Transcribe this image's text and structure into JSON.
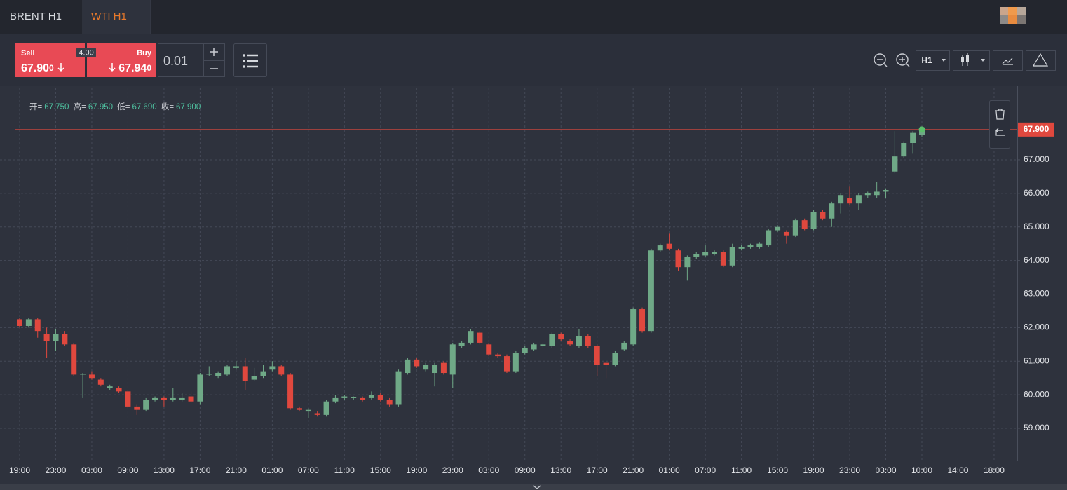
{
  "tabs": [
    "BRENT H1",
    "WTI H1"
  ],
  "sell": {
    "label": "Sell",
    "price_main": "67.90",
    "price_tail": "0"
  },
  "buy": {
    "label": "Buy",
    "price_main": "67.94",
    "price_tail": "0"
  },
  "spread": "4.00",
  "lot": "0.01",
  "timeframe": "H1",
  "ohlc_info": [
    {
      "label": "开=",
      "value": "67.750"
    },
    {
      "label": "高=",
      "value": "67.950"
    },
    {
      "label": "低=",
      "value": "67.690"
    },
    {
      "label": "收=",
      "value": "67.900"
    }
  ],
  "chart_data": {
    "type": "candlestick",
    "categories": [
      "19:00",
      null,
      null,
      null,
      "23:00",
      null,
      null,
      null,
      "03:00",
      null,
      null,
      null,
      "09:00",
      null,
      null,
      null,
      "13:00",
      null,
      null,
      null,
      "17:00",
      null,
      null,
      null,
      "21:00",
      null,
      null,
      null,
      "01:00",
      null,
      null,
      null,
      "07:00",
      null,
      null,
      null,
      "11:00",
      null,
      null,
      null,
      "15:00",
      null,
      null,
      null,
      "19:00",
      null,
      null,
      null,
      "23:00",
      null,
      null,
      null,
      "03:00",
      null,
      null,
      null,
      "09:00",
      null,
      null,
      null,
      "13:00",
      null,
      null,
      null,
      "17:00",
      null,
      null,
      null,
      "21:00",
      null,
      null,
      null,
      "01:00",
      null,
      null,
      null,
      "07:00",
      null,
      null,
      null,
      "11:00",
      null,
      null,
      null,
      "15:00",
      null,
      null,
      null,
      "19:00",
      null,
      null,
      null,
      "23:00",
      null,
      null,
      null,
      "03:00",
      null,
      null,
      null,
      "10:00",
      null,
      null,
      null,
      "14:00",
      null,
      null,
      null,
      "18:00",
      null,
      null
    ],
    "open": [
      62.25,
      62.05,
      62.25,
      61.8,
      61.6,
      61.8,
      61.5,
      60.6,
      60.6,
      60.45,
      60.2,
      60.2,
      60.1,
      59.65,
      59.55,
      59.85,
      59.9,
      59.85,
      59.85,
      59.95,
      59.8,
      60.6,
      60.55,
      60.6,
      60.8,
      60.85,
      60.45,
      60.55,
      60.75,
      60.85,
      60.6,
      59.6,
      59.5,
      59.45,
      59.4,
      59.8,
      59.9,
      59.9,
      59.9,
      59.9,
      60.0,
      59.85,
      59.7,
      60.65,
      61.05,
      60.75,
      60.65,
      60.95,
      60.6,
      61.45,
      61.55,
      61.85,
      61.5,
      61.2,
      61.15,
      60.7,
      61.25,
      61.35,
      61.45,
      61.45,
      61.8,
      61.6,
      61.45,
      61.75,
      61.45,
      60.95,
      60.9,
      61.35,
      61.5,
      62.55,
      61.9,
      64.3,
      64.5,
      64.3,
      63.8,
      64.1,
      64.15,
      64.2,
      64.25,
      63.85,
      64.35,
      64.4,
      64.4,
      64.45,
      64.9,
      64.85,
      64.75,
      65.2,
      64.95,
      65.45,
      65.25,
      65.7,
      65.85,
      65.7,
      65.95,
      65.95,
      66.05,
      66.65,
      67.1,
      67.5,
      67.75,
      null,
      null,
      null,
      null,
      null,
      null,
      null,
      null,
      null,
      null
    ],
    "high": [
      62.3,
      62.3,
      62.3,
      62.0,
      61.95,
      61.9,
      61.55,
      60.65,
      60.7,
      60.5,
      60.3,
      60.25,
      60.15,
      59.7,
      59.9,
      59.95,
      59.95,
      60.2,
      60.05,
      60.1,
      60.65,
      60.85,
      60.7,
      60.9,
      61.0,
      61.1,
      60.8,
      60.9,
      61.0,
      60.9,
      60.65,
      59.65,
      59.6,
      59.5,
      59.85,
      60.0,
      60.0,
      59.95,
      59.95,
      60.1,
      60.05,
      59.9,
      60.75,
      61.1,
      61.1,
      60.95,
      60.95,
      61.0,
      61.55,
      61.6,
      61.95,
      61.9,
      61.55,
      61.25,
      61.2,
      61.3,
      61.45,
      61.55,
      61.55,
      61.85,
      61.85,
      61.65,
      61.95,
      61.8,
      61.5,
      61.0,
      61.3,
      61.6,
      62.6,
      62.6,
      64.35,
      64.5,
      64.8,
      64.35,
      64.15,
      64.25,
      64.45,
      64.3,
      64.3,
      64.5,
      64.45,
      64.5,
      64.55,
      64.95,
      65.05,
      64.9,
      65.25,
      65.25,
      65.5,
      65.5,
      65.75,
      66.0,
      66.2,
      66.0,
      66.05,
      66.35,
      66.15,
      67.85,
      67.55,
      67.85,
      67.95,
      null,
      null,
      null,
      null,
      null,
      null,
      null,
      null,
      null,
      null
    ],
    "low": [
      62.0,
      62.0,
      61.7,
      61.1,
      61.3,
      61.45,
      60.55,
      59.9,
      60.45,
      60.25,
      60.15,
      60.05,
      59.6,
      59.4,
      59.5,
      59.8,
      59.65,
      59.8,
      59.8,
      59.75,
      59.7,
      60.55,
      60.5,
      60.55,
      60.75,
      60.15,
      60.4,
      60.5,
      60.7,
      60.55,
      59.55,
      59.5,
      59.3,
      59.35,
      59.35,
      59.75,
      59.85,
      59.85,
      59.8,
      59.85,
      59.8,
      59.65,
      59.65,
      60.6,
      60.8,
      60.7,
      60.25,
      60.6,
      60.2,
      61.4,
      61.5,
      61.5,
      61.15,
      61.1,
      60.65,
      60.65,
      61.2,
      61.3,
      61.4,
      61.4,
      61.6,
      61.45,
      61.4,
      61.4,
      60.55,
      60.5,
      60.85,
      61.3,
      61.45,
      61.85,
      61.85,
      64.25,
      64.3,
      63.7,
      63.4,
      64.05,
      64.1,
      64.15,
      63.8,
      63.8,
      64.3,
      64.35,
      64.35,
      64.4,
      64.85,
      64.5,
      64.7,
      64.9,
      64.9,
      65.2,
      65.0,
      65.4,
      65.65,
      65.5,
      65.85,
      65.85,
      65.85,
      66.6,
      67.05,
      67.2,
      67.69,
      null,
      null,
      null,
      null,
      null,
      null,
      null,
      null,
      null,
      null
    ],
    "close": [
      62.05,
      62.25,
      61.9,
      61.6,
      61.8,
      61.5,
      60.6,
      60.62,
      60.5,
      60.3,
      60.25,
      60.1,
      59.65,
      59.55,
      59.85,
      59.9,
      59.85,
      59.9,
      59.9,
      59.8,
      60.6,
      60.62,
      60.65,
      60.85,
      60.85,
      60.4,
      60.55,
      60.7,
      60.85,
      60.6,
      59.6,
      59.55,
      59.55,
      59.4,
      59.8,
      59.9,
      59.95,
      59.92,
      59.85,
      60.0,
      59.85,
      59.7,
      60.7,
      61.05,
      60.85,
      60.9,
      60.9,
      60.65,
      61.5,
      61.55,
      61.9,
      61.55,
      61.2,
      61.15,
      60.7,
      61.25,
      61.4,
      61.5,
      61.5,
      61.8,
      61.65,
      61.5,
      61.75,
      61.45,
      60.9,
      60.9,
      61.25,
      61.55,
      62.55,
      61.9,
      64.3,
      64.45,
      64.35,
      63.8,
      64.1,
      64.2,
      64.25,
      64.25,
      63.85,
      64.4,
      64.4,
      64.45,
      64.5,
      64.9,
      65.0,
      64.75,
      65.2,
      64.95,
      65.45,
      65.25,
      65.7,
      65.95,
      65.7,
      65.95,
      66.0,
      66.05,
      66.1,
      67.1,
      67.5,
      67.8,
      67.9,
      null,
      null,
      null,
      null,
      null,
      null,
      null,
      null,
      null,
      null
    ],
    "up_color": "#6fa987",
    "down_color": "#e0483e",
    "ylim": [
      58.04,
      69.15
    ],
    "yticks": [
      {
        "value": 59,
        "label": "59.000"
      },
      {
        "value": 60,
        "label": "60.000"
      },
      {
        "value": 61,
        "label": "61.000"
      },
      {
        "value": 62,
        "label": "62.000"
      },
      {
        "value": 63,
        "label": "63.000"
      },
      {
        "value": 64,
        "label": "64.000"
      },
      {
        "value": 65,
        "label": "65.000"
      },
      {
        "value": 66,
        "label": "66.000"
      },
      {
        "value": 67,
        "label": "67.000"
      }
    ],
    "last_price": {
      "value": 67.9,
      "label": "67.900"
    },
    "grid": true
  }
}
